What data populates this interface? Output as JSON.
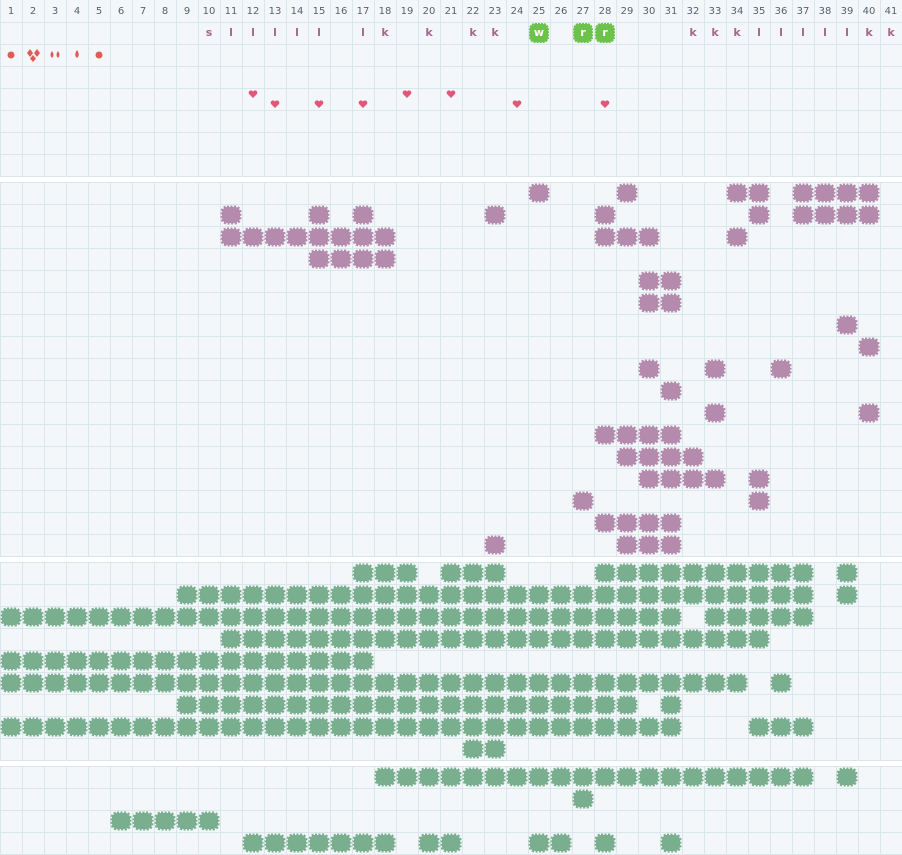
{
  "columns": [
    1,
    2,
    3,
    4,
    5,
    6,
    7,
    8,
    9,
    10,
    11,
    12,
    13,
    14,
    15,
    16,
    17,
    18,
    19,
    20,
    21,
    22,
    23,
    24,
    25,
    26,
    27,
    28,
    29,
    30,
    31,
    32,
    33,
    34,
    35,
    36,
    37,
    38,
    39,
    40,
    41
  ],
  "track_labels": [
    null,
    null,
    null,
    null,
    null,
    null,
    null,
    null,
    null,
    "s",
    "l",
    "l",
    "l",
    "l",
    "l",
    null,
    "l",
    "k",
    null,
    "k",
    null,
    "k",
    "k",
    null,
    "w",
    null,
    "r",
    "r",
    null,
    null,
    null,
    "k",
    "k",
    "k",
    "l",
    "l",
    "l",
    "l",
    "l",
    "k",
    "k"
  ],
  "highlighted_columns": [
    25,
    27,
    28
  ],
  "sections": [
    {
      "color": "#b48aad",
      "rows": [
        [
          25,
          29,
          34,
          35,
          37,
          38,
          39,
          40
        ],
        [
          11,
          15,
          17,
          23,
          28,
          35,
          37,
          38,
          39,
          40
        ],
        [
          11,
          12,
          13,
          14,
          15,
          16,
          17,
          18,
          28,
          29,
          30,
          34
        ],
        [
          15,
          16,
          17,
          18
        ],
        [
          30,
          31
        ],
        [
          30,
          31
        ],
        [
          39
        ],
        [
          40
        ],
        [
          30,
          33,
          36
        ],
        [
          31
        ],
        [
          33,
          40
        ],
        [
          28,
          29,
          30,
          31
        ],
        [
          29,
          30,
          31,
          32
        ],
        [
          30,
          31,
          32,
          33,
          35
        ],
        [
          27,
          35
        ],
        [
          28,
          29,
          30,
          31
        ],
        [
          23,
          29,
          30,
          31
        ]
      ]
    },
    {
      "color": "#79ae8e",
      "rows": [
        [
          17,
          18,
          19,
          21,
          22,
          23,
          28,
          29,
          30,
          31,
          32,
          33,
          34,
          35,
          36,
          37,
          39
        ],
        [
          9,
          10,
          11,
          12,
          13,
          14,
          15,
          16,
          17,
          18,
          19,
          20,
          21,
          22,
          23,
          24,
          25,
          26,
          27,
          28,
          29,
          30,
          31,
          32,
          33,
          34,
          35,
          36,
          37,
          39
        ],
        [
          1,
          2,
          3,
          4,
          5,
          6,
          7,
          8,
          9,
          10,
          11,
          12,
          13,
          14,
          15,
          16,
          17,
          18,
          19,
          20,
          21,
          22,
          23,
          24,
          25,
          26,
          27,
          28,
          29,
          30,
          31,
          33,
          34,
          35,
          36,
          37
        ],
        [
          11,
          12,
          13,
          14,
          15,
          16,
          17,
          18,
          19,
          20,
          21,
          22,
          23,
          24,
          25,
          26,
          27,
          28,
          29,
          30,
          31,
          32,
          33,
          34,
          35
        ],
        [
          1,
          2,
          3,
          4,
          5,
          6,
          7,
          8,
          9,
          10,
          11,
          12,
          13,
          14,
          15,
          16,
          17
        ],
        [
          1,
          2,
          3,
          4,
          5,
          6,
          7,
          8,
          9,
          10,
          11,
          12,
          13,
          14,
          15,
          16,
          17,
          18,
          19,
          20,
          21,
          22,
          23,
          24,
          25,
          26,
          27,
          28,
          29,
          30,
          31,
          32,
          33,
          34,
          36
        ],
        [
          9,
          10,
          11,
          12,
          13,
          14,
          15,
          16,
          17,
          18,
          19,
          20,
          21,
          22,
          23,
          24,
          25,
          26,
          27,
          28,
          29,
          31
        ],
        [
          1,
          2,
          3,
          4,
          5,
          6,
          7,
          8,
          9,
          10,
          11,
          12,
          13,
          14,
          15,
          16,
          17,
          18,
          19,
          20,
          21,
          22,
          23,
          24,
          25,
          26,
          27,
          28,
          29,
          30,
          31,
          35,
          36,
          37
        ],
        [
          22,
          23
        ]
      ]
    },
    {
      "color": "#79ae8e",
      "rows": [
        [
          18,
          19,
          20,
          21,
          22,
          23,
          24,
          25,
          26,
          27,
          28,
          29,
          30,
          31,
          32,
          33,
          34,
          35,
          36,
          37,
          39
        ],
        [
          27
        ],
        [
          6,
          7,
          8,
          9,
          10
        ],
        [
          12,
          13,
          14,
          15,
          16,
          17,
          18,
          20,
          21,
          25,
          26,
          28,
          31
        ]
      ]
    }
  ]
}
